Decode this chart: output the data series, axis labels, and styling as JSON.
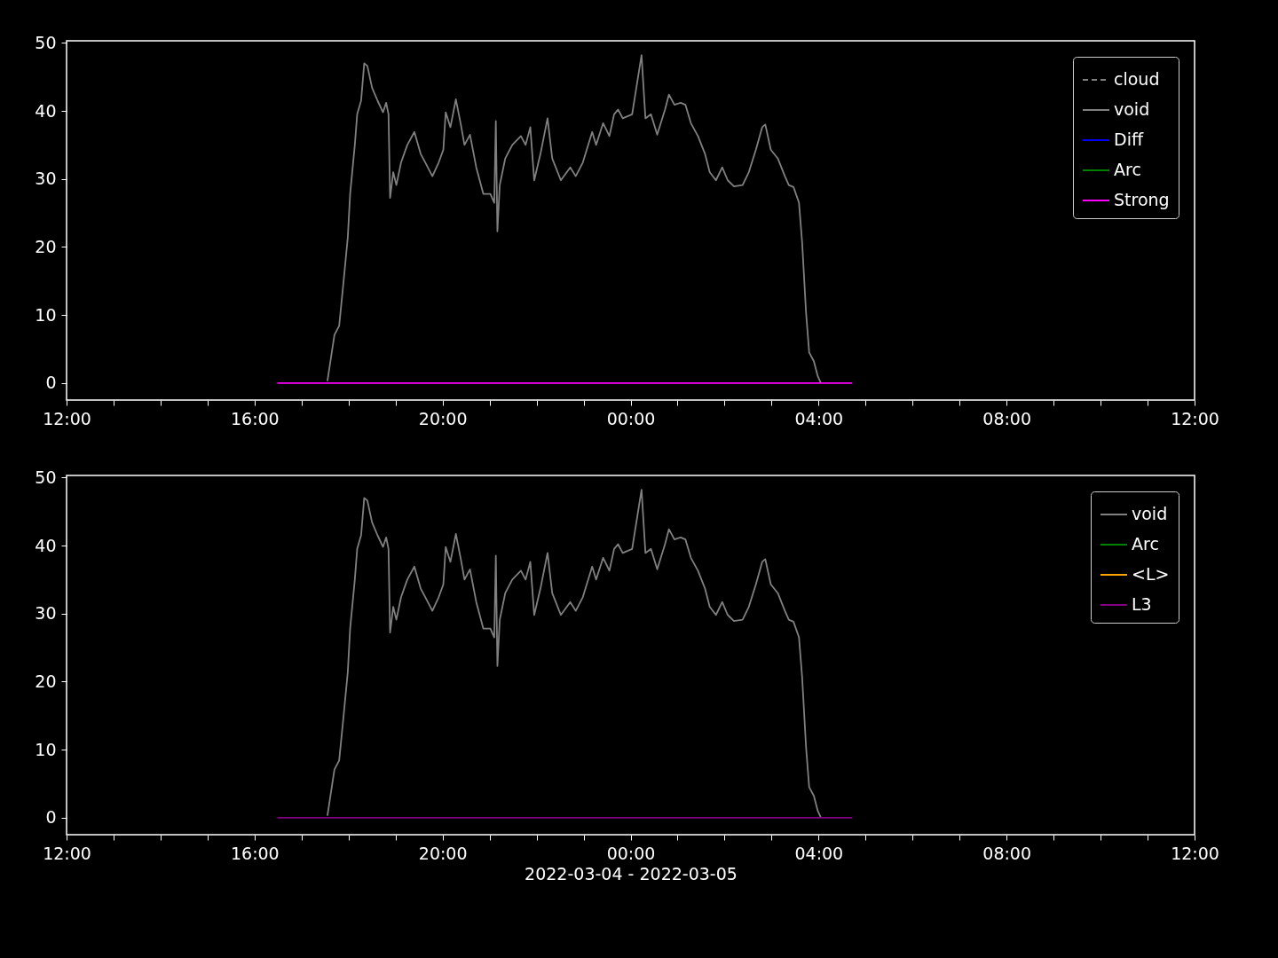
{
  "chart_data": [
    {
      "type": "line",
      "xlim": [
        "2022-03-04T12:00",
        "2022-03-05T12:00"
      ],
      "ylim": [
        -2.5,
        50.3
      ],
      "yticks": [
        0,
        10,
        20,
        30,
        40,
        50
      ],
      "xticks": [
        {
          "value": "2022-03-04T12:00",
          "label": "12:00"
        },
        {
          "value": "2022-03-04T13:00",
          "label": null
        },
        {
          "value": "2022-03-04T14:00",
          "label": null
        },
        {
          "value": "2022-03-04T15:00",
          "label": null
        },
        {
          "value": "2022-03-04T16:00",
          "label": "16:00"
        },
        {
          "value": "2022-03-04T17:00",
          "label": null
        },
        {
          "value": "2022-03-04T18:00",
          "label": null
        },
        {
          "value": "2022-03-04T19:00",
          "label": null
        },
        {
          "value": "2022-03-04T20:00",
          "label": "20:00"
        },
        {
          "value": "2022-03-04T21:00",
          "label": null
        },
        {
          "value": "2022-03-04T22:00",
          "label": null
        },
        {
          "value": "2022-03-04T23:00",
          "label": null
        },
        {
          "value": "2022-03-05T00:00",
          "label": "00:00"
        },
        {
          "value": "2022-03-05T01:00",
          "label": null
        },
        {
          "value": "2022-03-05T02:00",
          "label": null
        },
        {
          "value": "2022-03-05T03:00",
          "label": null
        },
        {
          "value": "2022-03-05T04:00",
          "label": "04:00"
        },
        {
          "value": "2022-03-05T05:00",
          "label": null
        },
        {
          "value": "2022-03-05T06:00",
          "label": null
        },
        {
          "value": "2022-03-05T07:00",
          "label": null
        },
        {
          "value": "2022-03-05T08:00",
          "label": "08:00"
        },
        {
          "value": "2022-03-05T09:00",
          "label": null
        },
        {
          "value": "2022-03-05T10:00",
          "label": null
        },
        {
          "value": "2022-03-05T11:00",
          "label": null
        },
        {
          "value": "2022-03-05T12:00",
          "label": "12:00"
        }
      ],
      "legend": "top right",
      "grid": false,
      "series": [
        {
          "name": "cloud",
          "color": "#808080",
          "line_style": "dashed"
        },
        {
          "name": "void",
          "color": "#808080",
          "line_style": "solid",
          "x": [
            "2022-03-04T17:33",
            "2022-03-04T17:42",
            "2022-03-04T17:48",
            "2022-03-04T17:53",
            "2022-03-04T17:59",
            "2022-03-04T18:02",
            "2022-03-04T18:08",
            "2022-03-04T18:11",
            "2022-03-04T18:16",
            "2022-03-04T18:20",
            "2022-03-04T18:24",
            "2022-03-04T18:30",
            "2022-03-04T18:37",
            "2022-03-04T18:44",
            "2022-03-04T18:48",
            "2022-03-04T18:51",
            "2022-03-04T18:53",
            "2022-03-04T18:57",
            "2022-03-04T19:01",
            "2022-03-04T19:07",
            "2022-03-04T19:15",
            "2022-03-04T19:24",
            "2022-03-04T19:32",
            "2022-03-04T19:38",
            "2022-03-04T19:47",
            "2022-03-04T19:55",
            "2022-03-04T20:01",
            "2022-03-04T20:04",
            "2022-03-04T20:10",
            "2022-03-04T20:17",
            "2022-03-04T20:23",
            "2022-03-04T20:28",
            "2022-03-04T20:35",
            "2022-03-04T20:43",
            "2022-03-04T20:52",
            "2022-03-04T21:01",
            "2022-03-04T21:06",
            "2022-03-04T21:08",
            "2022-03-04T21:10",
            "2022-03-04T21:13",
            "2022-03-04T21:20",
            "2022-03-04T21:29",
            "2022-03-04T21:40",
            "2022-03-04T21:46",
            "2022-03-04T21:52",
            "2022-03-04T21:57",
            "2022-03-04T22:05",
            "2022-03-04T22:14",
            "2022-03-04T22:20",
            "2022-03-04T22:31",
            "2022-03-04T22:43",
            "2022-03-04T22:50",
            "2022-03-04T22:59",
            "2022-03-04T23:11",
            "2022-03-04T23:16",
            "2022-03-04T23:25",
            "2022-03-04T23:33",
            "2022-03-04T23:39",
            "2022-03-04T23:44",
            "2022-03-04T23:50",
            "2022-03-05T00:02",
            "2022-03-05T00:14",
            "2022-03-05T00:19",
            "2022-03-05T00:26",
            "2022-03-05T00:34",
            "2022-03-05T00:44",
            "2022-03-05T00:49",
            "2022-03-05T00:56",
            "2022-03-05T01:04",
            "2022-03-05T01:10",
            "2022-03-05T01:17",
            "2022-03-05T01:26",
            "2022-03-05T01:35",
            "2022-03-05T01:41",
            "2022-03-05T01:49",
            "2022-03-05T01:57",
            "2022-03-05T02:04",
            "2022-03-05T02:12",
            "2022-03-05T02:23",
            "2022-03-05T02:31",
            "2022-03-05T02:40",
            "2022-03-05T02:48",
            "2022-03-05T02:52",
            "2022-03-05T02:59",
            "2022-03-05T03:08",
            "2022-03-05T03:17",
            "2022-03-05T03:22",
            "2022-03-05T03:28",
            "2022-03-05T03:35",
            "2022-03-05T03:39",
            "2022-03-05T03:44",
            "2022-03-05T03:48",
            "2022-03-05T03:54",
            "2022-03-05T03:59",
            "2022-03-05T04:03"
          ],
          "values": [
            0.3,
            7.1,
            8.4,
            14.2,
            21.4,
            27.8,
            35,
            39.5,
            41.5,
            47,
            46.6,
            43.4,
            41.5,
            39.8,
            41.2,
            39.5,
            27.2,
            31,
            29.1,
            32.4,
            35,
            36.9,
            33.7,
            32.4,
            30.4,
            32.4,
            34.3,
            39.8,
            37.6,
            41.7,
            38.2,
            35,
            36.5,
            31.7,
            27.8,
            27.8,
            26.5,
            38.5,
            22.3,
            29.1,
            33,
            35,
            36.3,
            35,
            37.6,
            29.8,
            33.7,
            38.9,
            33,
            29.8,
            31.7,
            30.4,
            32.4,
            36.9,
            35,
            38.2,
            36.3,
            39.5,
            40.2,
            38.9,
            39.5,
            48.2,
            38.9,
            39.5,
            36.5,
            40.2,
            42.4,
            40.9,
            41.2,
            40.9,
            38.2,
            36.3,
            33.7,
            31,
            29.8,
            31.7,
            29.8,
            28.9,
            29.1,
            31,
            34.3,
            37.6,
            38,
            34.3,
            33,
            30.4,
            29.1,
            28.8,
            26.5,
            20.7,
            10.4,
            4.5,
            3.2,
            1,
            0
          ]
        },
        {
          "name": "Diff",
          "color": "#0000ff",
          "line_style": "solid"
        },
        {
          "name": "Arc",
          "color": "#008000",
          "line_style": "solid"
        },
        {
          "name": "Strong",
          "color": "#ff00ff",
          "line_style": "solid",
          "x": [
            "2022-03-04T16:29",
            "2022-03-05T04:43"
          ],
          "values": [
            0,
            0
          ]
        }
      ]
    },
    {
      "type": "line",
      "xlabel": "2022-03-04 - 2022-03-05",
      "xlim": [
        "2022-03-04T12:00",
        "2022-03-05T12:00"
      ],
      "ylim": [
        -2.5,
        50.3
      ],
      "yticks": [
        0,
        10,
        20,
        30,
        40,
        50
      ],
      "xticks": [
        {
          "value": "2022-03-04T12:00",
          "label": "12:00"
        },
        {
          "value": "2022-03-04T13:00",
          "label": null
        },
        {
          "value": "2022-03-04T14:00",
          "label": null
        },
        {
          "value": "2022-03-04T15:00",
          "label": null
        },
        {
          "value": "2022-03-04T16:00",
          "label": "16:00"
        },
        {
          "value": "2022-03-04T17:00",
          "label": null
        },
        {
          "value": "2022-03-04T18:00",
          "label": null
        },
        {
          "value": "2022-03-04T19:00",
          "label": null
        },
        {
          "value": "2022-03-04T20:00",
          "label": "20:00"
        },
        {
          "value": "2022-03-04T21:00",
          "label": null
        },
        {
          "value": "2022-03-04T22:00",
          "label": null
        },
        {
          "value": "2022-03-04T23:00",
          "label": null
        },
        {
          "value": "2022-03-05T00:00",
          "label": "00:00"
        },
        {
          "value": "2022-03-05T01:00",
          "label": null
        },
        {
          "value": "2022-03-05T02:00",
          "label": null
        },
        {
          "value": "2022-03-05T03:00",
          "label": null
        },
        {
          "value": "2022-03-05T04:00",
          "label": "04:00"
        },
        {
          "value": "2022-03-05T05:00",
          "label": null
        },
        {
          "value": "2022-03-05T06:00",
          "label": null
        },
        {
          "value": "2022-03-05T07:00",
          "label": null
        },
        {
          "value": "2022-03-05T08:00",
          "label": "08:00"
        },
        {
          "value": "2022-03-05T09:00",
          "label": null
        },
        {
          "value": "2022-03-05T10:00",
          "label": null
        },
        {
          "value": "2022-03-05T11:00",
          "label": null
        },
        {
          "value": "2022-03-05T12:00",
          "label": "12:00"
        }
      ],
      "legend": "top right",
      "grid": false,
      "series": [
        {
          "name": "void",
          "color": "#808080",
          "line_style": "solid",
          "x": [
            "2022-03-04T17:33",
            "2022-03-04T17:42",
            "2022-03-04T17:48",
            "2022-03-04T17:53",
            "2022-03-04T17:59",
            "2022-03-04T18:02",
            "2022-03-04T18:08",
            "2022-03-04T18:11",
            "2022-03-04T18:16",
            "2022-03-04T18:20",
            "2022-03-04T18:24",
            "2022-03-04T18:30",
            "2022-03-04T18:37",
            "2022-03-04T18:44",
            "2022-03-04T18:48",
            "2022-03-04T18:51",
            "2022-03-04T18:53",
            "2022-03-04T18:57",
            "2022-03-04T19:01",
            "2022-03-04T19:07",
            "2022-03-04T19:15",
            "2022-03-04T19:24",
            "2022-03-04T19:32",
            "2022-03-04T19:38",
            "2022-03-04T19:47",
            "2022-03-04T19:55",
            "2022-03-04T20:01",
            "2022-03-04T20:04",
            "2022-03-04T20:10",
            "2022-03-04T20:17",
            "2022-03-04T20:23",
            "2022-03-04T20:28",
            "2022-03-04T20:35",
            "2022-03-04T20:43",
            "2022-03-04T20:52",
            "2022-03-04T21:01",
            "2022-03-04T21:06",
            "2022-03-04T21:08",
            "2022-03-04T21:10",
            "2022-03-04T21:13",
            "2022-03-04T21:20",
            "2022-03-04T21:29",
            "2022-03-04T21:40",
            "2022-03-04T21:46",
            "2022-03-04T21:52",
            "2022-03-04T21:57",
            "2022-03-04T22:05",
            "2022-03-04T22:14",
            "2022-03-04T22:20",
            "2022-03-04T22:31",
            "2022-03-04T22:43",
            "2022-03-04T22:50",
            "2022-03-04T22:59",
            "2022-03-04T23:11",
            "2022-03-04T23:16",
            "2022-03-04T23:25",
            "2022-03-04T23:33",
            "2022-03-04T23:39",
            "2022-03-04T23:44",
            "2022-03-04T23:50",
            "2022-03-05T00:02",
            "2022-03-05T00:14",
            "2022-03-05T00:19",
            "2022-03-05T00:26",
            "2022-03-05T00:34",
            "2022-03-05T00:44",
            "2022-03-05T00:49",
            "2022-03-05T00:56",
            "2022-03-05T01:04",
            "2022-03-05T01:10",
            "2022-03-05T01:17",
            "2022-03-05T01:26",
            "2022-03-05T01:35",
            "2022-03-05T01:41",
            "2022-03-05T01:49",
            "2022-03-05T01:57",
            "2022-03-05T02:04",
            "2022-03-05T02:12",
            "2022-03-05T02:23",
            "2022-03-05T02:31",
            "2022-03-05T02:40",
            "2022-03-05T02:48",
            "2022-03-05T02:52",
            "2022-03-05T02:59",
            "2022-03-05T03:08",
            "2022-03-05T03:17",
            "2022-03-05T03:22",
            "2022-03-05T03:28",
            "2022-03-05T03:35",
            "2022-03-05T03:39",
            "2022-03-05T03:44",
            "2022-03-05T03:48",
            "2022-03-05T03:54",
            "2022-03-05T03:59",
            "2022-03-05T04:03"
          ],
          "values": [
            0.3,
            7.1,
            8.4,
            14.2,
            21.4,
            27.8,
            35,
            39.5,
            41.5,
            47,
            46.6,
            43.4,
            41.5,
            39.8,
            41.2,
            39.5,
            27.2,
            31,
            29.1,
            32.4,
            35,
            36.9,
            33.7,
            32.4,
            30.4,
            32.4,
            34.3,
            39.8,
            37.6,
            41.7,
            38.2,
            35,
            36.5,
            31.7,
            27.8,
            27.8,
            26.5,
            38.5,
            22.3,
            29.1,
            33,
            35,
            36.3,
            35,
            37.6,
            29.8,
            33.7,
            38.9,
            33,
            29.8,
            31.7,
            30.4,
            32.4,
            36.9,
            35,
            38.2,
            36.3,
            39.5,
            40.2,
            38.9,
            39.5,
            48.2,
            38.9,
            39.5,
            36.5,
            40.2,
            42.4,
            40.9,
            41.2,
            40.9,
            38.2,
            36.3,
            33.7,
            31,
            29.8,
            31.7,
            29.8,
            28.9,
            29.1,
            31,
            34.3,
            37.6,
            38,
            34.3,
            33,
            30.4,
            29.1,
            28.8,
            26.5,
            20.7,
            10.4,
            4.5,
            3.2,
            1,
            0
          ]
        },
        {
          "name": "Arc",
          "color": "#008000",
          "line_style": "solid"
        },
        {
          "name": "<L>",
          "color": "#ffa500",
          "line_style": "solid"
        },
        {
          "name": "L3",
          "color": "#800080",
          "line_style": "solid",
          "x": [
            "2022-03-04T16:29",
            "2022-03-05T04:43"
          ],
          "values": [
            0,
            0
          ]
        }
      ]
    }
  ]
}
